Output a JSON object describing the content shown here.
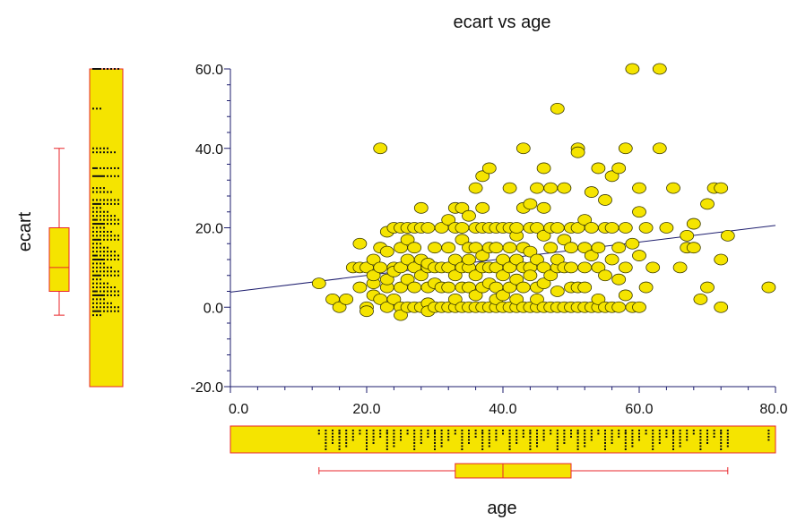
{
  "chart_data": {
    "type": "scatter",
    "title": "ecart vs age",
    "xlabel": "age",
    "ylabel": "ecart",
    "xlim": [
      0,
      80
    ],
    "ylim": [
      -20,
      60
    ],
    "x_ticks": [
      "0.0",
      "20.0",
      "40.0",
      "60.0",
      "80.0"
    ],
    "y_ticks": [
      "-20.0",
      "0.0",
      "20.0",
      "40.0",
      "60.0"
    ],
    "x_minor_step": 4,
    "y_minor_step": 4,
    "trend_line": {
      "intercept": 3.8,
      "slope": 0.21
    },
    "colors": {
      "marker_fill": "#f5e400",
      "marker_stroke": "#3a3a00",
      "box_stroke": "#e8262b",
      "trend": "#1d1d6e",
      "axis": "#1d1d6e",
      "rug_tick": "#111111"
    },
    "age_box": {
      "whisker_low": 13,
      "q1": 33,
      "median": 40,
      "q3": 50,
      "whisker_high": 73
    },
    "ecart_box": {
      "whisker_low": -2,
      "q1": 4,
      "median": 10,
      "q3": 20,
      "whisker_high": 40
    },
    "points": [
      [
        13,
        6
      ],
      [
        15,
        2
      ],
      [
        16,
        0
      ],
      [
        17,
        2
      ],
      [
        18,
        10
      ],
      [
        19,
        5
      ],
      [
        19,
        16
      ],
      [
        19,
        10
      ],
      [
        20,
        0
      ],
      [
        20,
        10
      ],
      [
        20,
        -1
      ],
      [
        21,
        6
      ],
      [
        21,
        8
      ],
      [
        21,
        3
      ],
      [
        21,
        12
      ],
      [
        22,
        10
      ],
      [
        22,
        15
      ],
      [
        22,
        40
      ],
      [
        22,
        2
      ],
      [
        23,
        0
      ],
      [
        23,
        5
      ],
      [
        23,
        7
      ],
      [
        23,
        14
      ],
      [
        23,
        19
      ],
      [
        24,
        10
      ],
      [
        24,
        20
      ],
      [
        24,
        2
      ],
      [
        24,
        9
      ],
      [
        25,
        0
      ],
      [
        25,
        10
      ],
      [
        25,
        5
      ],
      [
        25,
        -2
      ],
      [
        25,
        15
      ],
      [
        25,
        20
      ],
      [
        26,
        12
      ],
      [
        26,
        0
      ],
      [
        26,
        7
      ],
      [
        26,
        20
      ],
      [
        26,
        17
      ],
      [
        27,
        10
      ],
      [
        27,
        5
      ],
      [
        27,
        15
      ],
      [
        27,
        20
      ],
      [
        27,
        0
      ],
      [
        28,
        25
      ],
      [
        28,
        8
      ],
      [
        28,
        0
      ],
      [
        28,
        20
      ],
      [
        28,
        12
      ],
      [
        29,
        10
      ],
      [
        29,
        1
      ],
      [
        29,
        -1
      ],
      [
        29,
        5
      ],
      [
        29,
        20
      ],
      [
        29,
        11
      ],
      [
        30,
        0
      ],
      [
        30,
        10
      ],
      [
        30,
        15
      ],
      [
        30,
        6
      ],
      [
        31,
        20
      ],
      [
        31,
        5
      ],
      [
        31,
        0
      ],
      [
        31,
        10
      ],
      [
        32,
        22
      ],
      [
        32,
        5
      ],
      [
        32,
        0
      ],
      [
        32,
        15
      ],
      [
        32,
        10
      ],
      [
        33,
        8
      ],
      [
        33,
        20
      ],
      [
        33,
        0
      ],
      [
        33,
        25
      ],
      [
        33,
        2
      ],
      [
        33,
        12
      ],
      [
        34,
        10
      ],
      [
        34,
        17
      ],
      [
        34,
        0
      ],
      [
        34,
        5
      ],
      [
        34,
        20
      ],
      [
        34,
        25
      ],
      [
        35,
        23
      ],
      [
        35,
        15
      ],
      [
        35,
        5
      ],
      [
        35,
        0
      ],
      [
        35,
        10
      ],
      [
        35,
        12
      ],
      [
        36,
        30
      ],
      [
        36,
        20
      ],
      [
        36,
        0
      ],
      [
        36,
        3
      ],
      [
        36,
        8
      ],
      [
        36,
        15
      ],
      [
        37,
        33
      ],
      [
        37,
        10
      ],
      [
        37,
        0
      ],
      [
        37,
        5
      ],
      [
        37,
        20
      ],
      [
        37,
        13
      ],
      [
        37,
        25
      ],
      [
        38,
        35
      ],
      [
        38,
        10
      ],
      [
        38,
        15
      ],
      [
        38,
        0
      ],
      [
        38,
        20
      ],
      [
        38,
        6
      ],
      [
        39,
        0
      ],
      [
        39,
        10
      ],
      [
        39,
        20
      ],
      [
        39,
        5
      ],
      [
        39,
        15
      ],
      [
        39,
        2
      ],
      [
        40,
        12
      ],
      [
        40,
        0
      ],
      [
        40,
        8
      ],
      [
        40,
        20
      ],
      [
        40,
        3
      ],
      [
        41,
        10
      ],
      [
        41,
        0
      ],
      [
        41,
        5
      ],
      [
        41,
        15
      ],
      [
        41,
        20
      ],
      [
        41,
        30
      ],
      [
        42,
        18
      ],
      [
        42,
        0
      ],
      [
        42,
        7
      ],
      [
        42,
        12
      ],
      [
        42,
        20
      ],
      [
        42,
        2
      ],
      [
        43,
        40
      ],
      [
        43,
        10
      ],
      [
        43,
        25
      ],
      [
        43,
        0
      ],
      [
        43,
        5
      ],
      [
        43,
        15
      ],
      [
        44,
        20
      ],
      [
        44,
        10
      ],
      [
        44,
        0
      ],
      [
        44,
        8
      ],
      [
        44,
        26
      ],
      [
        44,
        14
      ],
      [
        45,
        30
      ],
      [
        45,
        5
      ],
      [
        45,
        0
      ],
      [
        45,
        12
      ],
      [
        45,
        20
      ],
      [
        45,
        2
      ],
      [
        46,
        35
      ],
      [
        46,
        10
      ],
      [
        46,
        18
      ],
      [
        46,
        0
      ],
      [
        46,
        25
      ],
      [
        46,
        6
      ],
      [
        47,
        30
      ],
      [
        47,
        20
      ],
      [
        47,
        0
      ],
      [
        47,
        15
      ],
      [
        47,
        8
      ],
      [
        48,
        50
      ],
      [
        48,
        10
      ],
      [
        48,
        0
      ],
      [
        48,
        12
      ],
      [
        48,
        20
      ],
      [
        48,
        4
      ],
      [
        49,
        17
      ],
      [
        49,
        0
      ],
      [
        49,
        10
      ],
      [
        49,
        30
      ],
      [
        50,
        20
      ],
      [
        50,
        0
      ],
      [
        50,
        5
      ],
      [
        50,
        15
      ],
      [
        50,
        10
      ],
      [
        51,
        40
      ],
      [
        51,
        39
      ],
      [
        51,
        5
      ],
      [
        51,
        0
      ],
      [
        51,
        20
      ],
      [
        52,
        22
      ],
      [
        52,
        10
      ],
      [
        52,
        0
      ],
      [
        52,
        15
      ],
      [
        52,
        5
      ],
      [
        53,
        29
      ],
      [
        53,
        13
      ],
      [
        53,
        0
      ],
      [
        53,
        20
      ],
      [
        54,
        35
      ],
      [
        54,
        15
      ],
      [
        54,
        0
      ],
      [
        54,
        10
      ],
      [
        54,
        2
      ],
      [
        55,
        27
      ],
      [
        55,
        20
      ],
      [
        55,
        0
      ],
      [
        55,
        8
      ],
      [
        56,
        33
      ],
      [
        56,
        20
      ],
      [
        56,
        0
      ],
      [
        56,
        12
      ],
      [
        57,
        35
      ],
      [
        57,
        15
      ],
      [
        57,
        0
      ],
      [
        57,
        7
      ],
      [
        58,
        20
      ],
      [
        58,
        10
      ],
      [
        58,
        40
      ],
      [
        58,
        3
      ],
      [
        59,
        60
      ],
      [
        59,
        0
      ],
      [
        59,
        16
      ],
      [
        60,
        30
      ],
      [
        60,
        24
      ],
      [
        60,
        0
      ],
      [
        60,
        13
      ],
      [
        61,
        5
      ],
      [
        61,
        20
      ],
      [
        62,
        10
      ],
      [
        63,
        60
      ],
      [
        63,
        40
      ],
      [
        64,
        20
      ],
      [
        65,
        30
      ],
      [
        66,
        10
      ],
      [
        67,
        15
      ],
      [
        67,
        18
      ],
      [
        68,
        21
      ],
      [
        68,
        15
      ],
      [
        69,
        2
      ],
      [
        70,
        26
      ],
      [
        70,
        5
      ],
      [
        71,
        30
      ],
      [
        72,
        30
      ],
      [
        72,
        12
      ],
      [
        72,
        0
      ],
      [
        73,
        18
      ],
      [
        79,
        5
      ]
    ],
    "age_rug": [
      13,
      14,
      15,
      16,
      16,
      17,
      18,
      19,
      20,
      21,
      22,
      23,
      24,
      25,
      26,
      27,
      28,
      29,
      30,
      31,
      32,
      33,
      34,
      35,
      36,
      37,
      38,
      39,
      40,
      41,
      42,
      43,
      44,
      45,
      46,
      47,
      48,
      49,
      50,
      51,
      52,
      53,
      54,
      55,
      56,
      57,
      58,
      59,
      60,
      61,
      62,
      63,
      64,
      65,
      66,
      67,
      68,
      69,
      70,
      71,
      72,
      73,
      79
    ],
    "ecart_rug": [
      -2,
      -1,
      0,
      1,
      2,
      3,
      4,
      5,
      6,
      7,
      8,
      9,
      10,
      11,
      12,
      13,
      14,
      15,
      16,
      17,
      18,
      19,
      20,
      21,
      22,
      23,
      24,
      25,
      26,
      27,
      29,
      30,
      33,
      35,
      39,
      40,
      50,
      60
    ]
  }
}
